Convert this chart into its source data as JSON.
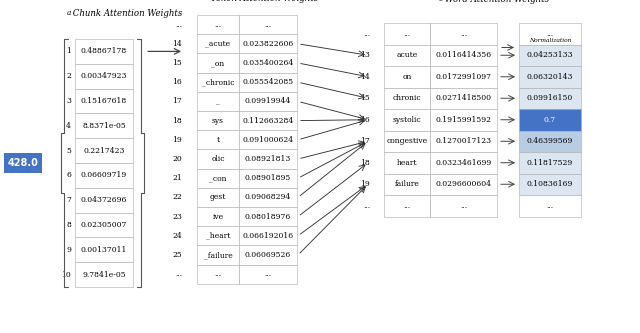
{
  "fig_width": 6.4,
  "fig_height": 3.33,
  "dpi": 100,
  "bg_color": "#ffffff",
  "blue_box_color": "#4472C4",
  "blue_box_text": "428.0",
  "section_a_title_super": "a",
  "section_a_title": " Chunk Attention Weights",
  "section_b_title_super": "b",
  "section_b_title": " Token Attention Weights",
  "section_c_title_super": "c",
  "section_c_title": " Word Attention Weights",
  "chunk_rows": [
    {
      "idx": "1",
      "val": "0.48867178"
    },
    {
      "idx": "2",
      "val": "0.00347923"
    },
    {
      "idx": "3",
      "val": "0.15167618"
    },
    {
      "idx": "4",
      "val": "8.8371e-05"
    },
    {
      "idx": "5",
      "val": "0.2217423"
    },
    {
      "idx": "6",
      "val": "0.06609719"
    },
    {
      "idx": "7",
      "val": "0.04372696"
    },
    {
      "idx": "8",
      "val": "0.02305007"
    },
    {
      "idx": "9",
      "val": "0.00137011"
    },
    {
      "idx": "10",
      "val": "9.7841e-05"
    }
  ],
  "token_rows": [
    {
      "idx": "...",
      "token": "...",
      "val": "..."
    },
    {
      "idx": "14",
      "token": "_acute",
      "val": "0.023822606"
    },
    {
      "idx": "15",
      "token": "_on",
      "val": "0.035400264"
    },
    {
      "idx": "16",
      "token": "_chronic",
      "val": "0.055542085"
    },
    {
      "idx": "17",
      "token": "_",
      "val": "0.09919944"
    },
    {
      "idx": "18",
      "token": "sys",
      "val": "0.112663284"
    },
    {
      "idx": "19",
      "token": "t",
      "val": "0.091000624"
    },
    {
      "idx": "20",
      "token": "olic",
      "val": "0.08921813"
    },
    {
      "idx": "21",
      "token": "_con",
      "val": "0.08901895"
    },
    {
      "idx": "22",
      "token": "gest",
      "val": "0.09068294"
    },
    {
      "idx": "23",
      "token": "ive",
      "val": "0.08018976"
    },
    {
      "idx": "24",
      "token": "_heart",
      "val": "0.066192016"
    },
    {
      "idx": "25",
      "token": "_failure",
      "val": "0.06069526"
    },
    {
      "idx": "...",
      "token": "...",
      "val": "..."
    }
  ],
  "word_rows": [
    {
      "idx": "...",
      "word": "...",
      "val": "...",
      "norm": "..."
    },
    {
      "idx": "13",
      "word": "acute",
      "val": "0.0116414356",
      "norm": "0.04253133"
    },
    {
      "idx": "14",
      "word": "on",
      "val": "0.0172991097",
      "norm": "0.06320143"
    },
    {
      "idx": "15",
      "word": "chronic",
      "val": "0.0271418500",
      "norm": "0.09916150"
    },
    {
      "idx": "16",
      "word": "systolic",
      "val": "0.1915991592",
      "norm": "0.7"
    },
    {
      "idx": "17",
      "word": "congestive",
      "val": "0.1270017123",
      "norm": "0.46399569"
    },
    {
      "idx": "18",
      "word": "heart",
      "val": "0.0323461699",
      "norm": "0.11817529"
    },
    {
      "idx": "19",
      "word": "failure",
      "val": "0.0296600604",
      "norm": "0.10836169"
    },
    {
      "idx": "...",
      "word": "...",
      "val": "...",
      "norm": "..."
    }
  ],
  "norm_colors": [
    "#ffffff",
    "#dce6f1",
    "#dce6f1",
    "#dce6f1",
    "#4472C4",
    "#b8cce4",
    "#dce6f1",
    "#dce6f1",
    "#ffffff"
  ],
  "token_to_word_arrows": [
    [
      1,
      1
    ],
    [
      2,
      2
    ],
    [
      3,
      3
    ],
    [
      4,
      4
    ],
    [
      5,
      4
    ],
    [
      6,
      4
    ],
    [
      7,
      5
    ],
    [
      8,
      5
    ],
    [
      9,
      5
    ],
    [
      10,
      6
    ],
    [
      11,
      7
    ],
    [
      12,
      7
    ]
  ]
}
